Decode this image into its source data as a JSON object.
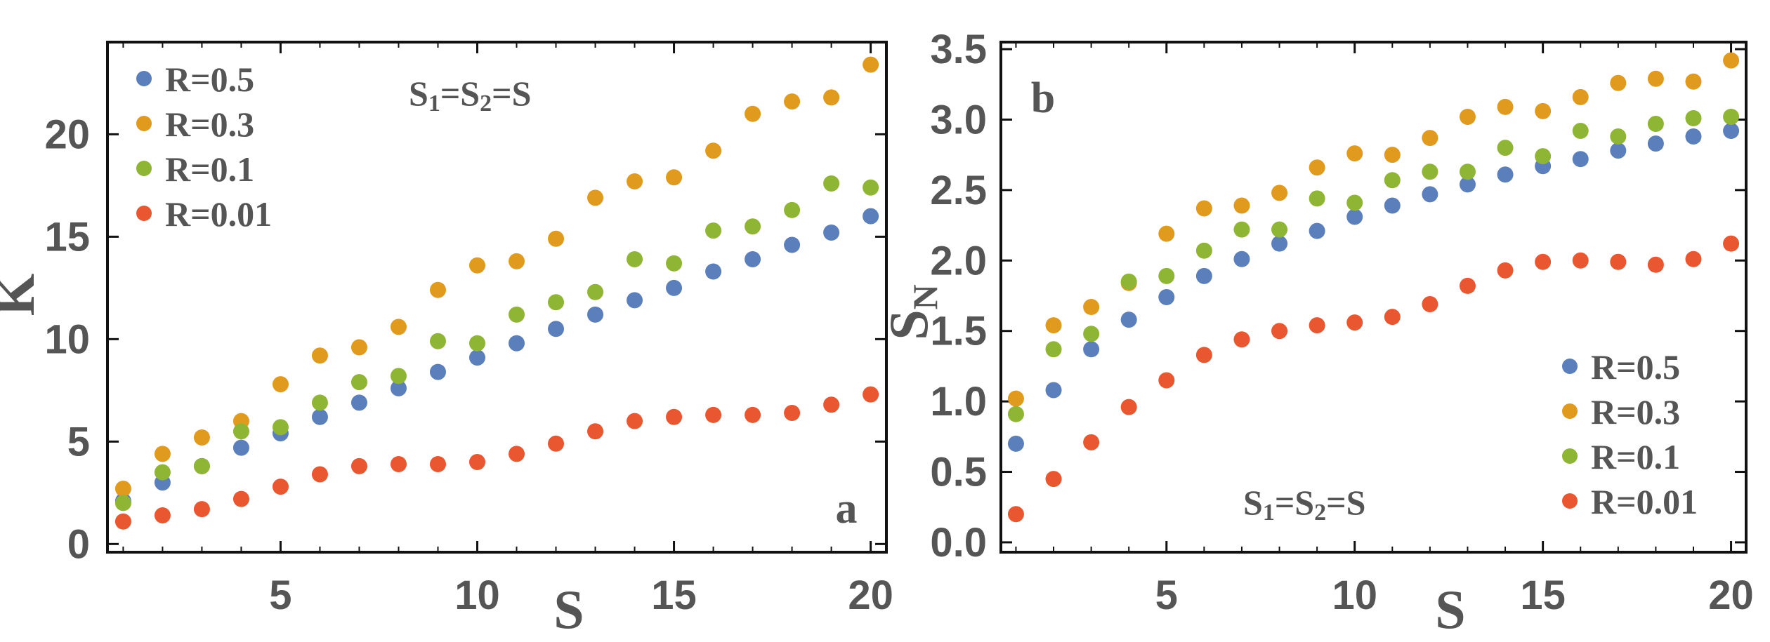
{
  "chart_data": [
    {
      "type": "scatter",
      "title": "",
      "xlabel": "S",
      "ylabel": "K",
      "panel_label": "a",
      "annotation": {
        "main": "S",
        "sub1": "1",
        "mid": "=S",
        "sub2": "2",
        "end": "=S"
      },
      "xlim": [
        0.6,
        20.4
      ],
      "ylim": [
        -0.4,
        24.5
      ],
      "xticks": [
        5,
        10,
        15,
        20
      ],
      "yticks": [
        0,
        5,
        10,
        15,
        20
      ],
      "grid": false,
      "legend_position": "top-left",
      "x": [
        1,
        2,
        3,
        4,
        5,
        6,
        7,
        8,
        9,
        10,
        11,
        12,
        13,
        14,
        15,
        16,
        17,
        18,
        19,
        20
      ],
      "series": [
        {
          "name": "R=0.5",
          "color": "#5b7fba",
          "values": [
            2.1,
            3.0,
            3.8,
            4.7,
            5.4,
            6.2,
            6.9,
            7.6,
            8.4,
            9.1,
            9.8,
            10.5,
            11.2,
            11.9,
            12.5,
            13.3,
            13.9,
            14.6,
            15.2,
            16.0
          ]
        },
        {
          "name": "R=0.3",
          "color": "#e09b1e",
          "values": [
            2.7,
            4.4,
            5.2,
            6.0,
            7.8,
            9.2,
            9.6,
            10.6,
            12.4,
            13.6,
            13.8,
            14.9,
            16.9,
            17.7,
            17.9,
            19.2,
            21.0,
            21.6,
            21.8,
            23.4
          ]
        },
        {
          "name": "R=0.1",
          "color": "#8fb535",
          "values": [
            2.0,
            3.5,
            3.8,
            5.5,
            5.7,
            6.9,
            7.9,
            8.2,
            9.9,
            9.8,
            11.2,
            11.8,
            12.3,
            13.9,
            13.7,
            15.3,
            15.5,
            16.3,
            17.6,
            17.4
          ]
        },
        {
          "name": "R=0.01",
          "color": "#e8572f",
          "values": [
            1.1,
            1.4,
            1.7,
            2.2,
            2.8,
            3.4,
            3.8,
            3.9,
            3.9,
            4.0,
            4.4,
            4.9,
            5.5,
            6.0,
            6.2,
            6.3,
            6.3,
            6.4,
            6.8,
            7.3
          ]
        }
      ]
    },
    {
      "type": "scatter",
      "title": "",
      "xlabel": "S",
      "ylabel": {
        "main": "S",
        "sub": "N"
      },
      "panel_label": "b",
      "annotation": {
        "main": "S",
        "sub1": "1",
        "mid": "=S",
        "sub2": "2",
        "end": "=S"
      },
      "xlim": [
        0.6,
        20.4
      ],
      "ylim": [
        -0.07,
        3.55
      ],
      "xticks": [
        5,
        10,
        15,
        20
      ],
      "yticks": [
        "0.0",
        "0.5",
        "1.0",
        "1.5",
        "2.0",
        "2.5",
        "3.0",
        "3.5"
      ],
      "grid": false,
      "legend_position": "bottom-right",
      "x": [
        1,
        2,
        3,
        4,
        5,
        6,
        7,
        8,
        9,
        10,
        11,
        12,
        13,
        14,
        15,
        16,
        17,
        18,
        19,
        20
      ],
      "series": [
        {
          "name": "R=0.5",
          "color": "#5b7fba",
          "values": [
            0.7,
            1.08,
            1.37,
            1.58,
            1.74,
            1.89,
            2.01,
            2.12,
            2.21,
            2.31,
            2.39,
            2.47,
            2.54,
            2.61,
            2.67,
            2.72,
            2.78,
            2.83,
            2.88,
            2.92
          ]
        },
        {
          "name": "R=0.3",
          "color": "#e09b1e",
          "values": [
            1.02,
            1.54,
            1.67,
            1.84,
            2.19,
            2.37,
            2.39,
            2.48,
            2.66,
            2.76,
            2.75,
            2.87,
            3.02,
            3.09,
            3.06,
            3.16,
            3.26,
            3.29,
            3.27,
            3.42
          ]
        },
        {
          "name": "R=0.1",
          "color": "#8fb535",
          "values": [
            0.91,
            1.37,
            1.48,
            1.85,
            1.89,
            2.07,
            2.22,
            2.22,
            2.44,
            2.41,
            2.57,
            2.63,
            2.63,
            2.8,
            2.74,
            2.92,
            2.88,
            2.97,
            3.01,
            3.02
          ]
        },
        {
          "name": "R=0.01",
          "color": "#e8572f",
          "values": [
            0.2,
            0.45,
            0.71,
            0.96,
            1.15,
            1.33,
            1.44,
            1.5,
            1.54,
            1.56,
            1.6,
            1.69,
            1.82,
            1.93,
            1.99,
            2.0,
            1.99,
            1.97,
            2.01,
            2.12
          ]
        }
      ]
    }
  ]
}
